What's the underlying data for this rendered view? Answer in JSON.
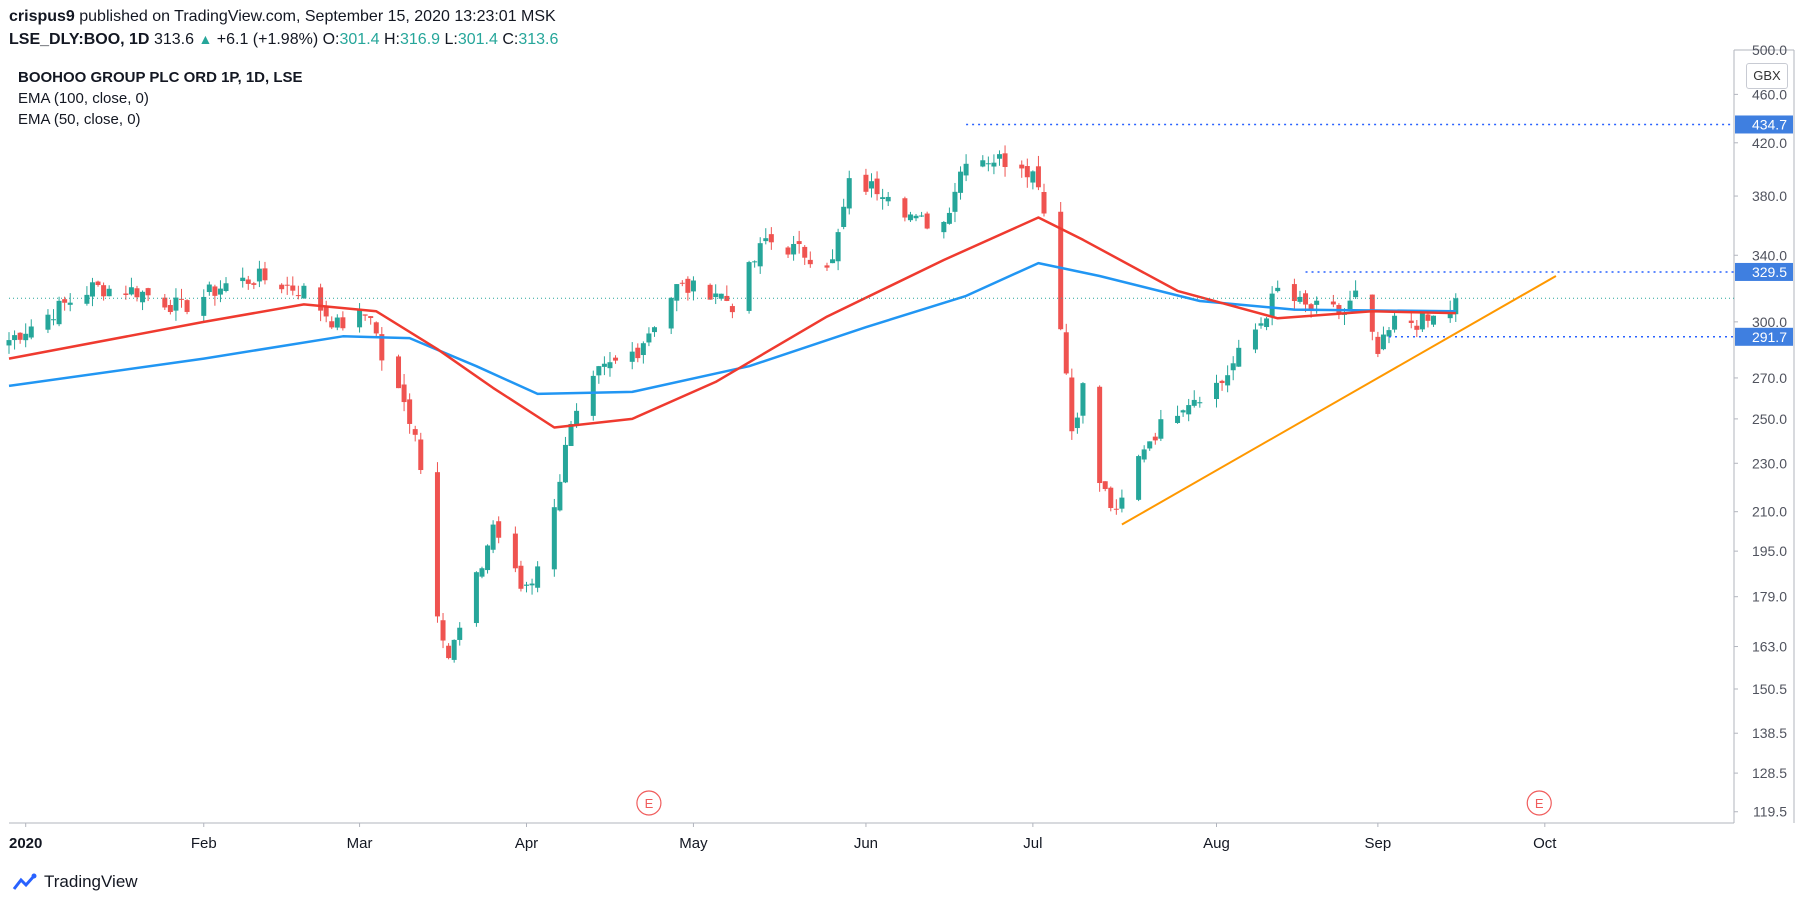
{
  "header": {
    "author": "crispus9",
    "published": " published on TradingView.com, September 15, 2020 13:23:01 MSK"
  },
  "quote": {
    "symbol": "LSE_DLY:BOO, 1D",
    "last": "313.6",
    "change": "+6.1 (+1.98%)",
    "o_label": "O:",
    "o": "301.4",
    "h_label": "H:",
    "h": "316.9",
    "l_label": "L:",
    "l": "301.4",
    "c_label": "C:",
    "c": "313.6"
  },
  "legend": {
    "title": "BOOHOO GROUP PLC ORD 1P, 1D, LSE",
    "ema100": "EMA (100, close, 0)",
    "ema50": "EMA (50, close, 0)"
  },
  "currency": "GBX",
  "footer": {
    "brand": "TradingView"
  },
  "colors": {
    "up": "#26a69a",
    "down": "#ef5350",
    "ema50": "#ef3a2f",
    "ema100": "#2196f3",
    "trend": "#ff9800",
    "level": "#2962ff",
    "label_bg": "#3f7fe0"
  },
  "chart_data": {
    "type": "candlestick",
    "title": "BOOHOO GROUP PLC ORD 1P, 1D, LSE",
    "y_scale": "log",
    "ylim": [
      117,
      500
    ],
    "y_ticks": [
      {
        "v": 500,
        "t": "500.0"
      },
      {
        "v": 460,
        "t": "460.0"
      },
      {
        "v": 420,
        "t": "420.0"
      },
      {
        "v": 380,
        "t": "380.0"
      },
      {
        "v": 340,
        "t": "340.0"
      },
      {
        "v": 300,
        "t": "300.0"
      },
      {
        "v": 270,
        "t": "270.0"
      },
      {
        "v": 250,
        "t": "250.0"
      },
      {
        "v": 230,
        "t": "230.0"
      },
      {
        "v": 210,
        "t": "210.0"
      },
      {
        "v": 195,
        "t": "195.0"
      },
      {
        "v": 179,
        "t": "179.0"
      },
      {
        "v": 163,
        "t": "163.0"
      },
      {
        "v": 150.5,
        "t": "150.5"
      },
      {
        "v": 138.5,
        "t": "138.5"
      },
      {
        "v": 128.5,
        "t": "128.5"
      },
      {
        "v": 119.5,
        "t": "119.5"
      }
    ],
    "x_ticks": [
      {
        "d": "2020-01-02",
        "t": "2020"
      },
      {
        "d": "2020-02-03",
        "t": "Feb"
      },
      {
        "d": "2020-03-02",
        "t": "Mar"
      },
      {
        "d": "2020-04-01",
        "t": "Apr"
      },
      {
        "d": "2020-05-01",
        "t": "May"
      },
      {
        "d": "2020-06-01",
        "t": "Jun"
      },
      {
        "d": "2020-07-01",
        "t": "Jul"
      },
      {
        "d": "2020-08-03",
        "t": "Aug"
      },
      {
        "d": "2020-09-01",
        "t": "Sep"
      },
      {
        "d": "2020-10-01",
        "t": "Oct"
      }
    ],
    "x_range": [
      "2019-12-30",
      "2020-11-04"
    ],
    "earnings_markers": [
      {
        "d": "2020-04-23",
        "t": "E"
      },
      {
        "d": "2020-09-30",
        "t": "E"
      }
    ],
    "key_points": [
      {
        "d": "2019-12-30",
        "c": 290
      },
      {
        "d": "2020-01-14",
        "c": 320
      },
      {
        "d": "2020-01-22",
        "c": 318
      },
      {
        "d": "2020-01-30",
        "c": 308
      },
      {
        "d": "2020-02-07",
        "c": 322
      },
      {
        "d": "2020-02-13",
        "c": 326
      },
      {
        "d": "2020-02-21",
        "c": 318
      },
      {
        "d": "2020-02-27",
        "c": 298
      },
      {
        "d": "2020-03-04",
        "c": 305
      },
      {
        "d": "2020-03-06",
        "c": 280
      },
      {
        "d": "2020-03-12",
        "c": 245
      },
      {
        "d": "2020-03-16",
        "c": 175
      },
      {
        "d": "2020-03-18",
        "c": 160
      },
      {
        "d": "2020-03-20",
        "c": 168
      },
      {
        "d": "2020-03-24",
        "c": 190
      },
      {
        "d": "2020-03-26",
        "c": 205
      },
      {
        "d": "2020-03-31",
        "c": 182
      },
      {
        "d": "2020-04-02",
        "c": 185
      },
      {
        "d": "2020-04-06",
        "c": 210
      },
      {
        "d": "2020-04-08",
        "c": 240
      },
      {
        "d": "2020-04-14",
        "c": 272
      },
      {
        "d": "2020-04-21",
        "c": 285
      },
      {
        "d": "2020-04-28",
        "c": 320
      },
      {
        "d": "2020-05-05",
        "c": 318
      },
      {
        "d": "2020-05-08",
        "c": 310
      },
      {
        "d": "2020-05-14",
        "c": 350
      },
      {
        "d": "2020-05-22",
        "c": 340
      },
      {
        "d": "2020-05-26",
        "c": 335
      },
      {
        "d": "2020-05-29",
        "c": 388
      },
      {
        "d": "2020-06-05",
        "c": 385
      },
      {
        "d": "2020-06-10",
        "c": 362
      },
      {
        "d": "2020-06-15",
        "c": 362
      },
      {
        "d": "2020-06-19",
        "c": 410
      },
      {
        "d": "2020-06-29",
        "c": 405
      },
      {
        "d": "2020-07-02",
        "c": 392
      },
      {
        "d": "2020-07-06",
        "c": 300
      },
      {
        "d": "2020-07-08",
        "c": 245
      },
      {
        "d": "2020-07-10",
        "c": 265
      },
      {
        "d": "2020-07-13",
        "c": 222
      },
      {
        "d": "2020-07-16",
        "c": 208
      },
      {
        "d": "2020-07-21",
        "c": 238
      },
      {
        "d": "2020-07-28",
        "c": 258
      },
      {
        "d": "2020-08-04",
        "c": 268
      },
      {
        "d": "2020-08-11",
        "c": 300
      },
      {
        "d": "2020-08-14",
        "c": 318
      },
      {
        "d": "2020-08-19",
        "c": 308
      },
      {
        "d": "2020-08-26",
        "c": 305
      },
      {
        "d": "2020-08-28",
        "c": 315
      },
      {
        "d": "2020-09-01",
        "c": 282
      },
      {
        "d": "2020-09-04",
        "c": 300
      },
      {
        "d": "2020-09-10",
        "c": 300
      },
      {
        "d": "2020-09-14",
        "c": 307.5
      },
      {
        "d": "2020-09-15",
        "c": 313.6
      }
    ],
    "ema50_points": [
      {
        "d": "2019-12-30",
        "v": 280
      },
      {
        "d": "2020-02-03",
        "v": 300
      },
      {
        "d": "2020-02-21",
        "v": 310
      },
      {
        "d": "2020-03-05",
        "v": 306
      },
      {
        "d": "2020-03-16",
        "v": 285
      },
      {
        "d": "2020-03-26",
        "v": 265
      },
      {
        "d": "2020-04-06",
        "v": 246
      },
      {
        "d": "2020-04-20",
        "v": 250
      },
      {
        "d": "2020-05-05",
        "v": 268
      },
      {
        "d": "2020-05-25",
        "v": 303
      },
      {
        "d": "2020-06-15",
        "v": 337
      },
      {
        "d": "2020-07-02",
        "v": 365
      },
      {
        "d": "2020-07-10",
        "v": 350
      },
      {
        "d": "2020-07-27",
        "v": 318
      },
      {
        "d": "2020-08-14",
        "v": 302
      },
      {
        "d": "2020-08-31",
        "v": 306
      },
      {
        "d": "2020-09-15",
        "v": 305
      }
    ],
    "ema100_points": [
      {
        "d": "2019-12-30",
        "v": 266
      },
      {
        "d": "2020-02-03",
        "v": 280
      },
      {
        "d": "2020-02-28",
        "v": 292
      },
      {
        "d": "2020-03-11",
        "v": 291
      },
      {
        "d": "2020-03-23",
        "v": 276
      },
      {
        "d": "2020-04-03",
        "v": 262
      },
      {
        "d": "2020-04-20",
        "v": 263
      },
      {
        "d": "2020-05-11",
        "v": 276
      },
      {
        "d": "2020-06-01",
        "v": 297
      },
      {
        "d": "2020-06-19",
        "v": 315
      },
      {
        "d": "2020-07-02",
        "v": 335
      },
      {
        "d": "2020-07-13",
        "v": 327
      },
      {
        "d": "2020-07-31",
        "v": 312
      },
      {
        "d": "2020-08-17",
        "v": 307
      },
      {
        "d": "2020-09-15",
        "v": 306
      }
    ],
    "annotations": [
      {
        "type": "horizontal-level",
        "from": "2020-06-19",
        "v": 434.7,
        "t": "434.7"
      },
      {
        "type": "horizontal-level",
        "from": "2020-08-19",
        "v": 329.5,
        "t": "329.5"
      },
      {
        "type": "horizontal-level",
        "from": "2020-09-03",
        "v": 291.7,
        "t": "291.7"
      },
      {
        "type": "trend-line",
        "from": {
          "d": "2020-07-17",
          "v": 205
        },
        "to": {
          "d": "2020-10-03",
          "v": 327
        }
      }
    ]
  }
}
